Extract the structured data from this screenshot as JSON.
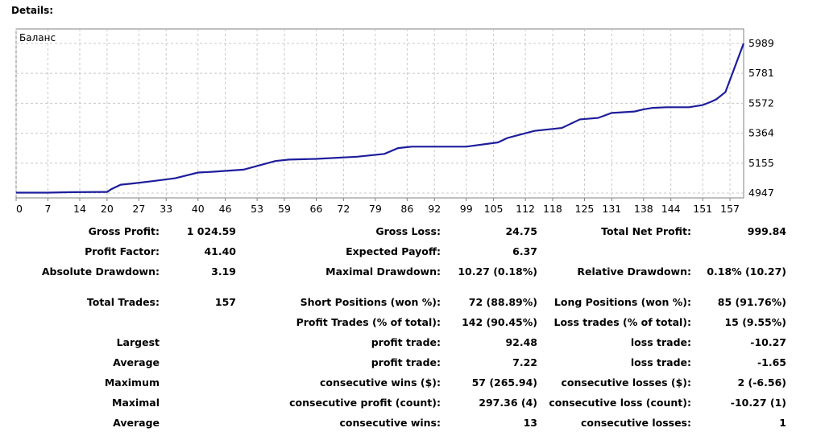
{
  "details_label": "Details:",
  "chart_data": {
    "type": "line",
    "title": "Баланс",
    "x_ticks": [
      "0",
      "7",
      "14",
      "20",
      "27",
      "33",
      "40",
      "46",
      "53",
      "59",
      "66",
      "72",
      "79",
      "86",
      "92",
      "99",
      "105",
      "112",
      "118",
      "125",
      "131",
      "138",
      "144",
      "151",
      "157"
    ],
    "y_ticks": [
      "5989",
      "5781",
      "5572",
      "5364",
      "5155",
      "4947"
    ],
    "ylim": [
      4947,
      5989
    ],
    "xlim": [
      0,
      160
    ],
    "grid": true,
    "line_color": "#1d1d9c",
    "series": [
      {
        "x": [
          0,
          7,
          12,
          20,
          21,
          23,
          26,
          30,
          35,
          40,
          43,
          50,
          57,
          60,
          66,
          75,
          81,
          84,
          87,
          99,
          106,
          108,
          114,
          120,
          124,
          128,
          131,
          136,
          138,
          140,
          143,
          148,
          151,
          153,
          154,
          156,
          160
        ],
        "values": [
          4950,
          4950,
          4953,
          4955,
          4975,
          5005,
          5015,
          5030,
          5050,
          5090,
          5095,
          5110,
          5170,
          5180,
          5185,
          5200,
          5220,
          5260,
          5270,
          5270,
          5300,
          5330,
          5380,
          5400,
          5460,
          5470,
          5505,
          5515,
          5530,
          5540,
          5545,
          5545,
          5560,
          5585,
          5600,
          5650,
          5989
        ]
      }
    ]
  },
  "stats": [
    {
      "cells": [
        {
          "label": "Gross Profit:",
          "value": "1 024.59"
        },
        {
          "label": "Gross Loss:",
          "value": "24.75"
        },
        {
          "label": "Total Net Profit:",
          "value": "999.84"
        }
      ]
    },
    {
      "cells": [
        {
          "label": "Profit Factor:",
          "value": "41.40"
        },
        {
          "label": "Expected Payoff:",
          "value": "6.37"
        },
        {
          "label": "",
          "value": ""
        }
      ]
    },
    {
      "cells": [
        {
          "label": "Absolute Drawdown:",
          "value": "3.19"
        },
        {
          "label": "Maximal Drawdown:",
          "value": "10.27 (0.18%)"
        },
        {
          "label": "Relative Drawdown:",
          "value": "0.18% (10.27)"
        }
      ]
    },
    {
      "cells": [
        {
          "label": "Total Trades:",
          "value": "157"
        },
        {
          "label": "Short Positions (won %):",
          "value": "72 (88.89%)"
        },
        {
          "label": "Long Positions (won %):",
          "value": "85 (91.76%)"
        }
      ]
    },
    {
      "cells": [
        {
          "label": "",
          "value": ""
        },
        {
          "label": "Profit Trades (% of total):",
          "value": "142 (90.45%)"
        },
        {
          "label": "Loss trades (% of total):",
          "value": "15 (9.55%)"
        }
      ]
    },
    {
      "cells": [
        {
          "label": "Largest",
          "value": ""
        },
        {
          "label": "profit trade:",
          "value": "92.48"
        },
        {
          "label": "loss trade:",
          "value": "-10.27"
        }
      ]
    },
    {
      "cells": [
        {
          "label": "Average",
          "value": ""
        },
        {
          "label": "profit trade:",
          "value": "7.22"
        },
        {
          "label": "loss trade:",
          "value": "-1.65"
        }
      ]
    },
    {
      "cells": [
        {
          "label": "Maximum",
          "value": ""
        },
        {
          "label": "consecutive wins ($):",
          "value": "57 (265.94)"
        },
        {
          "label": "consecutive losses ($):",
          "value": "2 (-6.56)"
        }
      ]
    },
    {
      "cells": [
        {
          "label": "Maximal",
          "value": ""
        },
        {
          "label": "consecutive profit (count):",
          "value": "297.36 (4)"
        },
        {
          "label": "consecutive loss (count):",
          "value": "-10.27 (1)"
        }
      ]
    },
    {
      "cells": [
        {
          "label": "Average",
          "value": ""
        },
        {
          "label": "consecutive wins:",
          "value": "13"
        },
        {
          "label": "consecutive losses:",
          "value": "1"
        }
      ]
    }
  ]
}
